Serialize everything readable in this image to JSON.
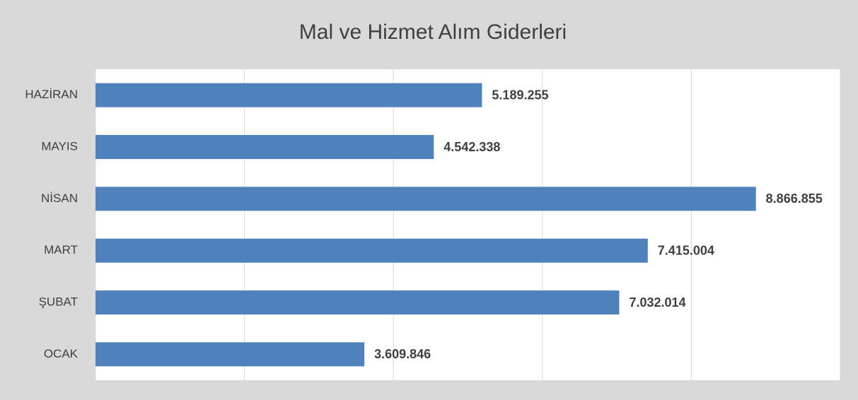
{
  "chart_data": {
    "type": "bar",
    "orientation": "horizontal",
    "title": "Mal ve Hizmet Alım Giderleri",
    "categories": [
      "OCAK",
      "ŞUBAT",
      "MART",
      "NİSAN",
      "MAYIS",
      "HAZİRAN"
    ],
    "values": [
      3609846,
      7032014,
      7415004,
      8866855,
      4542338,
      5189255
    ],
    "value_labels": [
      "3.609.846",
      "7.032.014",
      "7.415.004",
      "8.866.855",
      "4.542.338",
      "5.189.255"
    ],
    "color": "#4f81bd",
    "xlim": [
      0,
      10000000
    ],
    "xticks": [
      0,
      2000000,
      4000000,
      6000000,
      8000000,
      10000000
    ],
    "grid": true
  }
}
